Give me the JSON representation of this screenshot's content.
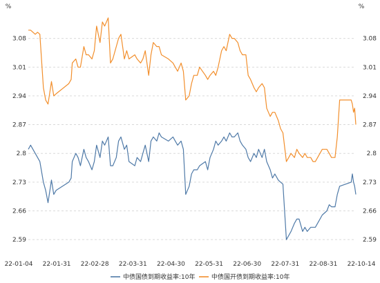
{
  "chart_data": {
    "type": "line",
    "left_unit": "%",
    "right_unit": "%",
    "ylim": [
      2.555,
      3.16
    ],
    "yticks": [
      "3.08",
      "3.01",
      "2.94",
      "2.87",
      "2.8",
      "2.73",
      "2.66",
      "2.59"
    ],
    "xticks": [
      "22-01-04",
      "22-01-31",
      "22-02-28",
      "22-03-31",
      "22-04-30",
      "22-05-31",
      "22-06-30",
      "22-07-31",
      "22-08-31",
      "22-10-14"
    ],
    "x_range": [
      "2022-01-04",
      "2022-10-14"
    ],
    "grid": true,
    "legend_position": "bottom",
    "series": [
      {
        "name": "中债国债到期收益率:10年",
        "color": "#4e79a7",
        "points": [
          [
            "2022-01-04",
            2.81
          ],
          [
            "2022-01-06",
            2.82
          ],
          [
            "2022-01-10",
            2.8
          ],
          [
            "2022-01-12",
            2.79
          ],
          [
            "2022-01-14",
            2.78
          ],
          [
            "2022-01-17",
            2.73
          ],
          [
            "2022-01-19",
            2.71
          ],
          [
            "2022-01-21",
            2.68
          ],
          [
            "2022-01-24",
            2.735
          ],
          [
            "2022-01-26",
            2.7
          ],
          [
            "2022-01-28",
            2.71
          ],
          [
            "2022-02-08",
            2.73
          ],
          [
            "2022-02-10",
            2.74
          ],
          [
            "2022-02-11",
            2.78
          ],
          [
            "2022-02-14",
            2.8
          ],
          [
            "2022-02-16",
            2.79
          ],
          [
            "2022-02-18",
            2.77
          ],
          [
            "2022-02-21",
            2.81
          ],
          [
            "2022-02-23",
            2.79
          ],
          [
            "2022-02-25",
            2.78
          ],
          [
            "2022-02-28",
            2.76
          ],
          [
            "2022-03-02",
            2.78
          ],
          [
            "2022-03-04",
            2.82
          ],
          [
            "2022-03-07",
            2.79
          ],
          [
            "2022-03-09",
            2.83
          ],
          [
            "2022-03-11",
            2.82
          ],
          [
            "2022-03-14",
            2.84
          ],
          [
            "2022-03-16",
            2.77
          ],
          [
            "2022-03-18",
            2.77
          ],
          [
            "2022-03-21",
            2.79
          ],
          [
            "2022-03-23",
            2.83
          ],
          [
            "2022-03-25",
            2.84
          ],
          [
            "2022-03-28",
            2.81
          ],
          [
            "2022-03-30",
            2.82
          ],
          [
            "2022-04-01",
            2.78
          ],
          [
            "2022-04-06",
            2.77
          ],
          [
            "2022-04-08",
            2.79
          ],
          [
            "2022-04-11",
            2.78
          ],
          [
            "2022-04-13",
            2.8
          ],
          [
            "2022-04-15",
            2.82
          ],
          [
            "2022-04-18",
            2.78
          ],
          [
            "2022-04-20",
            2.83
          ],
          [
            "2022-04-22",
            2.84
          ],
          [
            "2022-04-25",
            2.83
          ],
          [
            "2022-04-27",
            2.85
          ],
          [
            "2022-04-29",
            2.84
          ],
          [
            "2022-05-05",
            2.83
          ],
          [
            "2022-05-09",
            2.84
          ],
          [
            "2022-05-11",
            2.83
          ],
          [
            "2022-05-13",
            2.82
          ],
          [
            "2022-05-16",
            2.83
          ],
          [
            "2022-05-18",
            2.81
          ],
          [
            "2022-05-20",
            2.7
          ],
          [
            "2022-05-23",
            2.72
          ],
          [
            "2022-05-25",
            2.75
          ],
          [
            "2022-05-27",
            2.76
          ],
          [
            "2022-05-30",
            2.76
          ],
          [
            "2022-06-01",
            2.77
          ],
          [
            "2022-06-06",
            2.78
          ],
          [
            "2022-06-08",
            2.76
          ],
          [
            "2022-06-10",
            2.79
          ],
          [
            "2022-06-13",
            2.81
          ],
          [
            "2022-06-15",
            2.83
          ],
          [
            "2022-06-17",
            2.82
          ],
          [
            "2022-06-20",
            2.83
          ],
          [
            "2022-06-22",
            2.84
          ],
          [
            "2022-06-24",
            2.83
          ],
          [
            "2022-06-27",
            2.85
          ],
          [
            "2022-06-29",
            2.84
          ],
          [
            "2022-07-01",
            2.84
          ],
          [
            "2022-07-04",
            2.85
          ],
          [
            "2022-07-06",
            2.83
          ],
          [
            "2022-07-08",
            2.82
          ],
          [
            "2022-07-11",
            2.81
          ],
          [
            "2022-07-13",
            2.79
          ],
          [
            "2022-07-15",
            2.78
          ],
          [
            "2022-07-18",
            2.8
          ],
          [
            "2022-07-20",
            2.79
          ],
          [
            "2022-07-22",
            2.81
          ],
          [
            "2022-07-25",
            2.79
          ],
          [
            "2022-07-27",
            2.81
          ],
          [
            "2022-07-29",
            2.78
          ],
          [
            "2022-08-01",
            2.76
          ],
          [
            "2022-08-03",
            2.74
          ],
          [
            "2022-08-05",
            2.75
          ],
          [
            "2022-08-08",
            2.735
          ],
          [
            "2022-08-10",
            2.73
          ],
          [
            "2022-08-12",
            2.725
          ],
          [
            "2022-08-15",
            2.59
          ],
          [
            "2022-08-17",
            2.6
          ],
          [
            "2022-08-19",
            2.61
          ],
          [
            "2022-08-22",
            2.63
          ],
          [
            "2022-08-24",
            2.64
          ],
          [
            "2022-08-26",
            2.64
          ],
          [
            "2022-08-29",
            2.61
          ],
          [
            "2022-08-31",
            2.62
          ],
          [
            "2022-09-02",
            2.61
          ],
          [
            "2022-09-05",
            2.62
          ],
          [
            "2022-09-07",
            2.62
          ],
          [
            "2022-09-09",
            2.62
          ],
          [
            "2022-09-13",
            2.64
          ],
          [
            "2022-09-15",
            2.65
          ],
          [
            "2022-09-19",
            2.66
          ],
          [
            "2022-09-21",
            2.675
          ],
          [
            "2022-09-23",
            2.67
          ],
          [
            "2022-09-26",
            2.67
          ],
          [
            "2022-09-28",
            2.7
          ],
          [
            "2022-09-30",
            2.72
          ],
          [
            "2022-10-10",
            2.73
          ],
          [
            "2022-10-11",
            2.75
          ],
          [
            "2022-10-12",
            2.73
          ],
          [
            "2022-10-13",
            2.72
          ],
          [
            "2022-10-14",
            2.7
          ]
        ]
      },
      {
        "name": "中债国开债到期收益率:10年",
        "color": "#f28e2b",
        "points": [
          [
            "2022-01-04",
            3.1
          ],
          [
            "2022-01-06",
            3.1
          ],
          [
            "2022-01-10",
            3.09
          ],
          [
            "2022-01-12",
            3.095
          ],
          [
            "2022-01-14",
            3.09
          ],
          [
            "2022-01-17",
            2.96
          ],
          [
            "2022-01-19",
            2.93
          ],
          [
            "2022-01-21",
            2.92
          ],
          [
            "2022-01-24",
            2.975
          ],
          [
            "2022-01-26",
            2.94
          ],
          [
            "2022-01-28",
            2.945
          ],
          [
            "2022-02-08",
            2.97
          ],
          [
            "2022-02-10",
            2.98
          ],
          [
            "2022-02-11",
            3.02
          ],
          [
            "2022-02-14",
            3.03
          ],
          [
            "2022-02-16",
            3.01
          ],
          [
            "2022-02-18",
            3.01
          ],
          [
            "2022-02-21",
            3.06
          ],
          [
            "2022-02-23",
            3.04
          ],
          [
            "2022-02-25",
            3.04
          ],
          [
            "2022-02-28",
            3.03
          ],
          [
            "2022-03-02",
            3.05
          ],
          [
            "2022-03-04",
            3.11
          ],
          [
            "2022-03-07",
            3.07
          ],
          [
            "2022-03-09",
            3.12
          ],
          [
            "2022-03-11",
            3.11
          ],
          [
            "2022-03-14",
            3.13
          ],
          [
            "2022-03-16",
            3.02
          ],
          [
            "2022-03-18",
            3.03
          ],
          [
            "2022-03-21",
            3.06
          ],
          [
            "2022-03-23",
            3.08
          ],
          [
            "2022-03-25",
            3.09
          ],
          [
            "2022-03-28",
            3.03
          ],
          [
            "2022-03-30",
            3.05
          ],
          [
            "2022-04-01",
            3.03
          ],
          [
            "2022-04-06",
            3.04
          ],
          [
            "2022-04-08",
            3.03
          ],
          [
            "2022-04-11",
            3.02
          ],
          [
            "2022-04-13",
            3.03
          ],
          [
            "2022-04-15",
            3.05
          ],
          [
            "2022-04-18",
            2.99
          ],
          [
            "2022-04-20",
            3.04
          ],
          [
            "2022-04-22",
            3.07
          ],
          [
            "2022-04-25",
            3.06
          ],
          [
            "2022-04-27",
            3.06
          ],
          [
            "2022-04-29",
            3.04
          ],
          [
            "2022-05-05",
            3.03
          ],
          [
            "2022-05-09",
            3.02
          ],
          [
            "2022-05-11",
            3.01
          ],
          [
            "2022-05-13",
            3.0
          ],
          [
            "2022-05-16",
            3.02
          ],
          [
            "2022-05-18",
            3.0
          ],
          [
            "2022-05-20",
            2.93
          ],
          [
            "2022-05-23",
            2.94
          ],
          [
            "2022-05-25",
            2.97
          ],
          [
            "2022-05-27",
            2.99
          ],
          [
            "2022-05-30",
            2.99
          ],
          [
            "2022-06-01",
            3.01
          ],
          [
            "2022-06-06",
            2.99
          ],
          [
            "2022-06-08",
            2.98
          ],
          [
            "2022-06-10",
            2.99
          ],
          [
            "2022-06-13",
            3.0
          ],
          [
            "2022-06-15",
            2.99
          ],
          [
            "2022-06-17",
            3.01
          ],
          [
            "2022-06-20",
            3.05
          ],
          [
            "2022-06-22",
            3.06
          ],
          [
            "2022-06-24",
            3.05
          ],
          [
            "2022-06-27",
            3.09
          ],
          [
            "2022-06-29",
            3.08
          ],
          [
            "2022-07-01",
            3.08
          ],
          [
            "2022-07-04",
            3.07
          ],
          [
            "2022-07-06",
            3.05
          ],
          [
            "2022-07-08",
            3.04
          ],
          [
            "2022-07-11",
            3.04
          ],
          [
            "2022-07-13",
            2.99
          ],
          [
            "2022-07-15",
            2.98
          ],
          [
            "2022-07-18",
            2.96
          ],
          [
            "2022-07-20",
            2.95
          ],
          [
            "2022-07-22",
            2.96
          ],
          [
            "2022-07-25",
            2.97
          ],
          [
            "2022-07-27",
            2.96
          ],
          [
            "2022-07-29",
            2.91
          ],
          [
            "2022-08-01",
            2.89
          ],
          [
            "2022-08-03",
            2.9
          ],
          [
            "2022-08-05",
            2.9
          ],
          [
            "2022-08-08",
            2.88
          ],
          [
            "2022-08-10",
            2.86
          ],
          [
            "2022-08-12",
            2.85
          ],
          [
            "2022-08-15",
            2.78
          ],
          [
            "2022-08-17",
            2.79
          ],
          [
            "2022-08-19",
            2.8
          ],
          [
            "2022-08-22",
            2.79
          ],
          [
            "2022-08-24",
            2.81
          ],
          [
            "2022-08-26",
            2.8
          ],
          [
            "2022-08-29",
            2.79
          ],
          [
            "2022-08-31",
            2.8
          ],
          [
            "2022-09-02",
            2.79
          ],
          [
            "2022-09-05",
            2.79
          ],
          [
            "2022-09-07",
            2.78
          ],
          [
            "2022-09-09",
            2.78
          ],
          [
            "2022-09-13",
            2.8
          ],
          [
            "2022-09-15",
            2.81
          ],
          [
            "2022-09-19",
            2.81
          ],
          [
            "2022-09-21",
            2.8
          ],
          [
            "2022-09-23",
            2.79
          ],
          [
            "2022-09-26",
            2.79
          ],
          [
            "2022-09-28",
            2.84
          ],
          [
            "2022-09-30",
            2.93
          ],
          [
            "2022-10-10",
            2.93
          ],
          [
            "2022-10-11",
            2.92
          ],
          [
            "2022-10-12",
            2.9
          ],
          [
            "2022-10-13",
            2.91
          ],
          [
            "2022-10-14",
            2.87
          ]
        ]
      }
    ]
  }
}
